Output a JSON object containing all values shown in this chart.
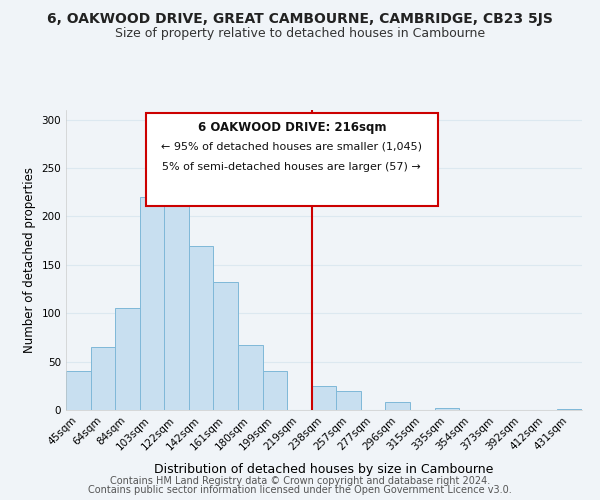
{
  "title": "6, OAKWOOD DRIVE, GREAT CAMBOURNE, CAMBRIDGE, CB23 5JS",
  "subtitle": "Size of property relative to detached houses in Cambourne",
  "xlabel": "Distribution of detached houses by size in Cambourne",
  "ylabel": "Number of detached properties",
  "bar_labels": [
    "45sqm",
    "64sqm",
    "84sqm",
    "103sqm",
    "122sqm",
    "142sqm",
    "161sqm",
    "180sqm",
    "199sqm",
    "219sqm",
    "238sqm",
    "257sqm",
    "277sqm",
    "296sqm",
    "315sqm",
    "335sqm",
    "354sqm",
    "373sqm",
    "392sqm",
    "412sqm",
    "431sqm"
  ],
  "bar_values": [
    40,
    65,
    105,
    220,
    220,
    169,
    132,
    67,
    40,
    0,
    25,
    20,
    0,
    8,
    0,
    2,
    0,
    0,
    0,
    0,
    1
  ],
  "bar_color": "#c8dff0",
  "bar_edge_color": "#7fb8d8",
  "vline_x": 9.5,
  "vline_color": "#cc0000",
  "ylim": [
    0,
    310
  ],
  "yticks": [
    0,
    50,
    100,
    150,
    200,
    250,
    300
  ],
  "annotation_title": "6 OAKWOOD DRIVE: 216sqm",
  "annotation_line1": "← 95% of detached houses are smaller (1,045)",
  "annotation_line2": "5% of semi-detached houses are larger (57) →",
  "footer1": "Contains HM Land Registry data © Crown copyright and database right 2024.",
  "footer2": "Contains public sector information licensed under the Open Government Licence v3.0.",
  "background_color": "#f0f4f8",
  "grid_color": "#dce8f0",
  "title_fontsize": 10,
  "subtitle_fontsize": 9,
  "xlabel_fontsize": 9,
  "ylabel_fontsize": 8.5,
  "tick_fontsize": 7.5,
  "footer_fontsize": 7
}
